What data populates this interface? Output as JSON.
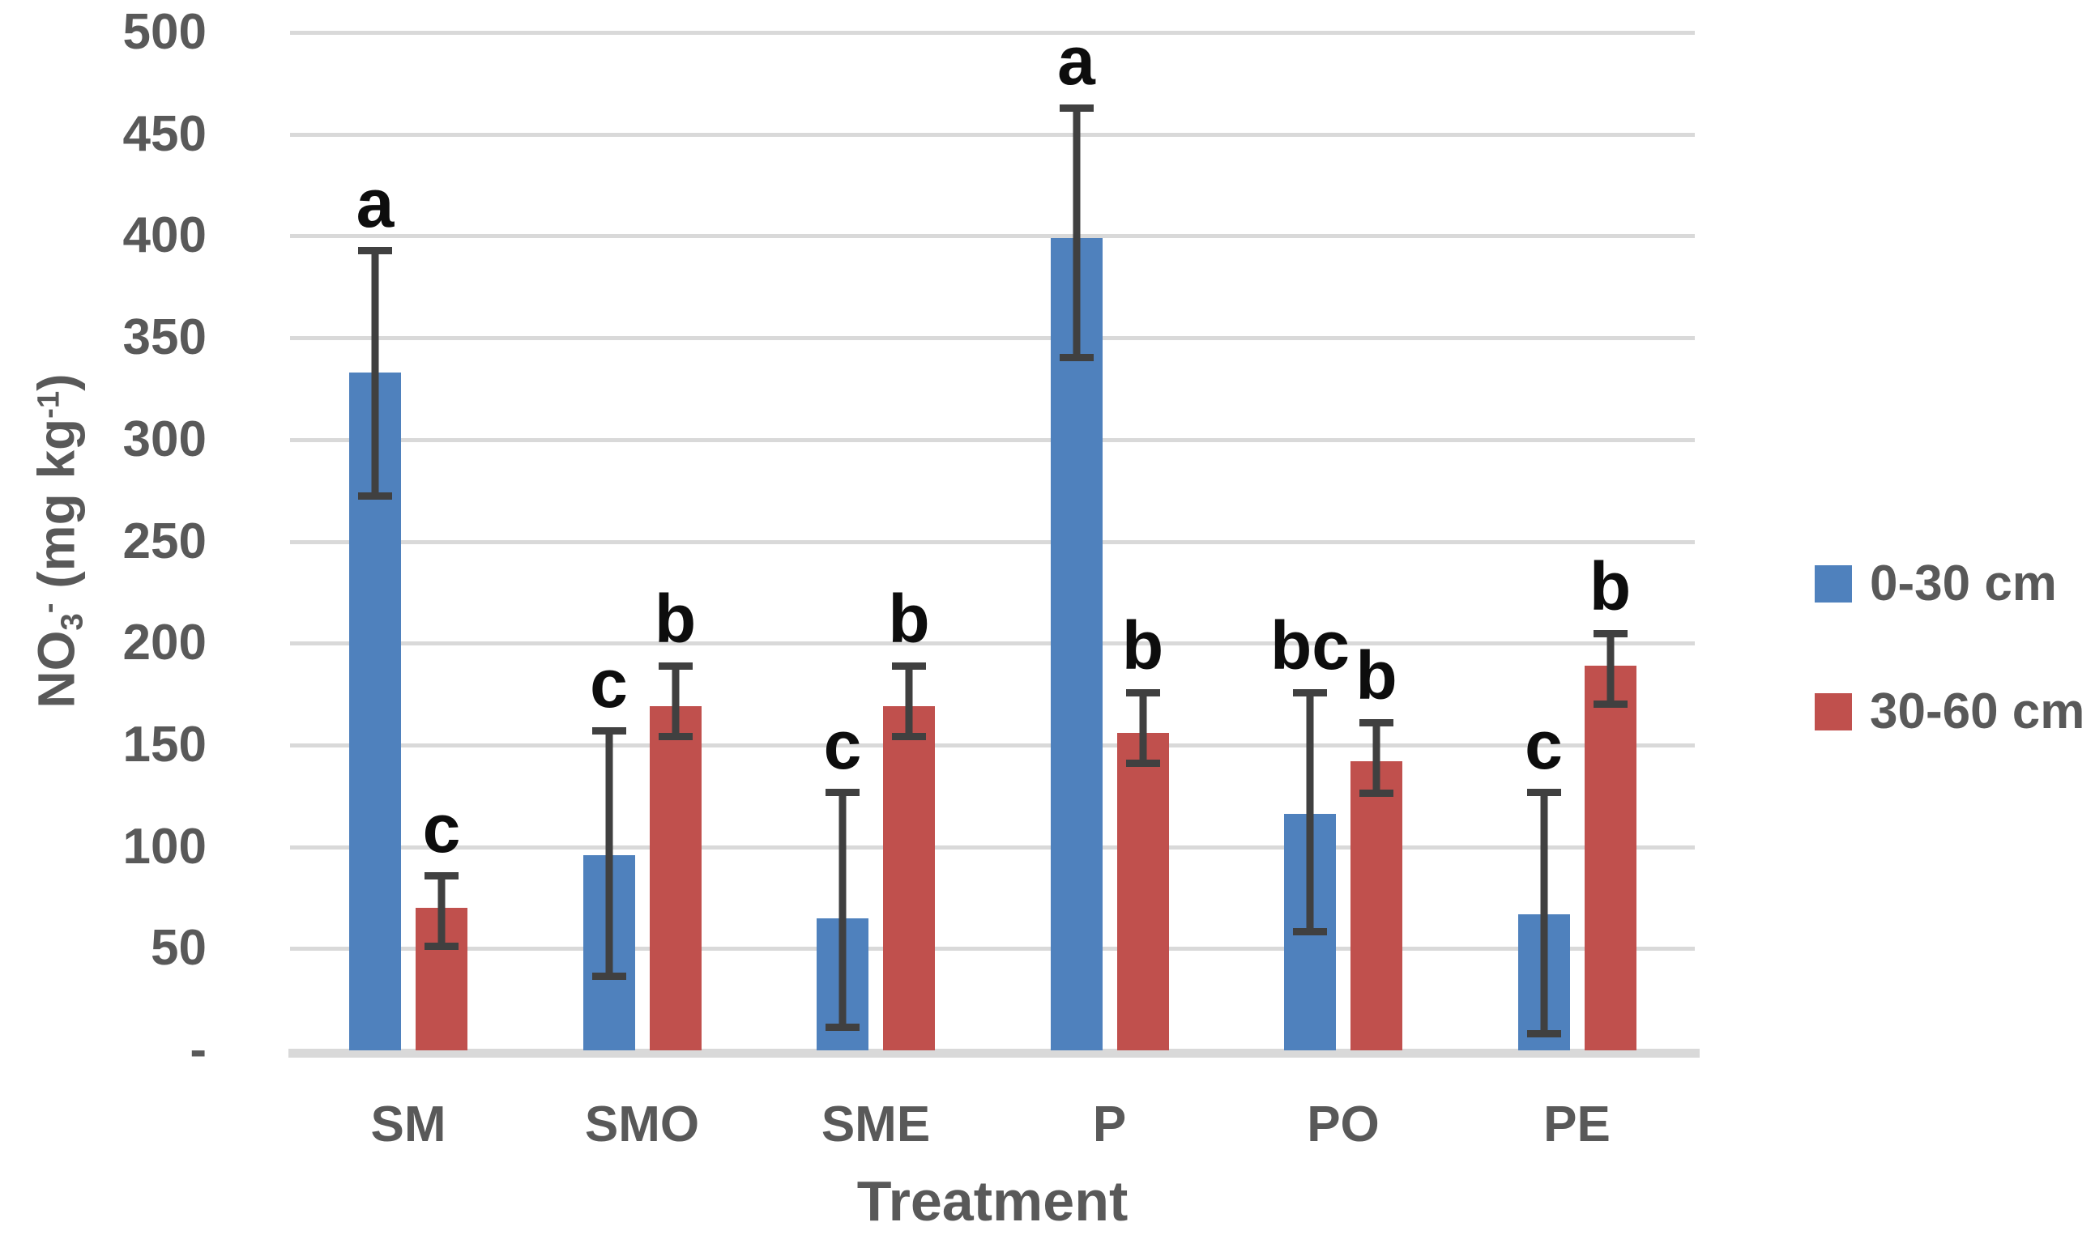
{
  "chart_data": {
    "type": "bar",
    "title": "",
    "xlabel": "Treatment",
    "ylabel": "NO3- (mg kg-1)",
    "ylim": [
      0,
      500
    ],
    "ytick_step": 50,
    "grid": true,
    "legend_position": "right",
    "categories": [
      "SM",
      "SMO",
      "SME",
      "P",
      "PO",
      "PE"
    ],
    "series": [
      {
        "name": "0-30 cm",
        "color": "#4F81BD",
        "values": [
          333,
          96,
          65,
          399,
          116,
          67
        ],
        "error_up": [
          60,
          61,
          62,
          64,
          60,
          60
        ],
        "error_down": [
          61,
          60,
          54,
          59,
          58,
          59
        ],
        "letters": [
          "a",
          "c",
          "c",
          "a",
          "bc",
          "c"
        ]
      },
      {
        "name": "30-60 cm",
        "color": "#C0504D",
        "values": [
          70,
          169,
          169,
          156,
          142,
          189
        ],
        "error_up": [
          16,
          20,
          20,
          20,
          19,
          16
        ],
        "error_down": [
          19,
          15,
          15,
          15,
          16,
          19
        ],
        "letters": [
          "c",
          "b",
          "b",
          "b",
          "b",
          "b"
        ]
      }
    ]
  },
  "y_axis": {
    "tick_labels": [
      "500",
      "450",
      "400",
      "350",
      "300",
      "250",
      "200",
      "150",
      "100",
      "50",
      "-"
    ],
    "tick_values": [
      500,
      450,
      400,
      350,
      300,
      250,
      200,
      150,
      100,
      50,
      0
    ],
    "title_base1": "NO",
    "title_sub": "3",
    "title_sup1": "-",
    "title_base2": " (mg kg",
    "title_sup2": "-1",
    "title_base3": ")"
  },
  "x_axis": {
    "title": "Treatment"
  },
  "legend": {
    "items": [
      {
        "label": "0-30 cm",
        "color": "#4F81BD"
      },
      {
        "label": "30-60 cm",
        "color": "#C0504D"
      }
    ]
  }
}
